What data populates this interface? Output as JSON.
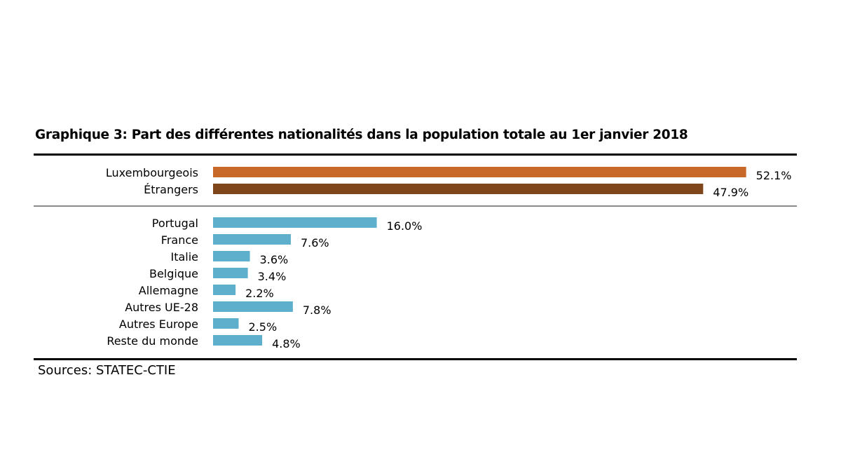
{
  "title": "Graphique 3: Part des différentes nationalités dans la population totale au 1er janvier 2018",
  "sources": "Sources: STATEC-CTIE",
  "chart_data": {
    "type": "bar",
    "orientation": "horizontal",
    "title": "Graphique 3: Part des différentes nationalités dans la population totale au 1er janvier 2018",
    "xlabel": "",
    "ylabel": "",
    "unit": "%",
    "groups": [
      {
        "name": "total",
        "categories": [
          "Luxembourgeois",
          "Étrangers"
        ],
        "values": [
          52.1,
          47.9
        ],
        "value_labels": [
          "52.1%",
          "47.9%"
        ],
        "colors": [
          "#c8692a",
          "#7f461c"
        ]
      },
      {
        "name": "etrangers-detail",
        "categories": [
          "Portugal",
          "France",
          "Italie",
          "Belgique",
          "Allemagne",
          "Autres UE-28",
          "Autres Europe",
          "Reste du monde"
        ],
        "values": [
          16.0,
          7.6,
          3.6,
          3.4,
          2.2,
          7.8,
          2.5,
          4.8
        ],
        "value_labels": [
          "16.0%",
          "7.6%",
          "3.6%",
          "3.4%",
          "2.2%",
          "7.8%",
          "2.5%",
          "4.8%"
        ],
        "colors": [
          "#5eafcc",
          "#5eafcc",
          "#5eafcc",
          "#5eafcc",
          "#5eafcc",
          "#5eafcc",
          "#5eafcc",
          "#5eafcc"
        ]
      }
    ],
    "grid": false,
    "legend": "none"
  }
}
